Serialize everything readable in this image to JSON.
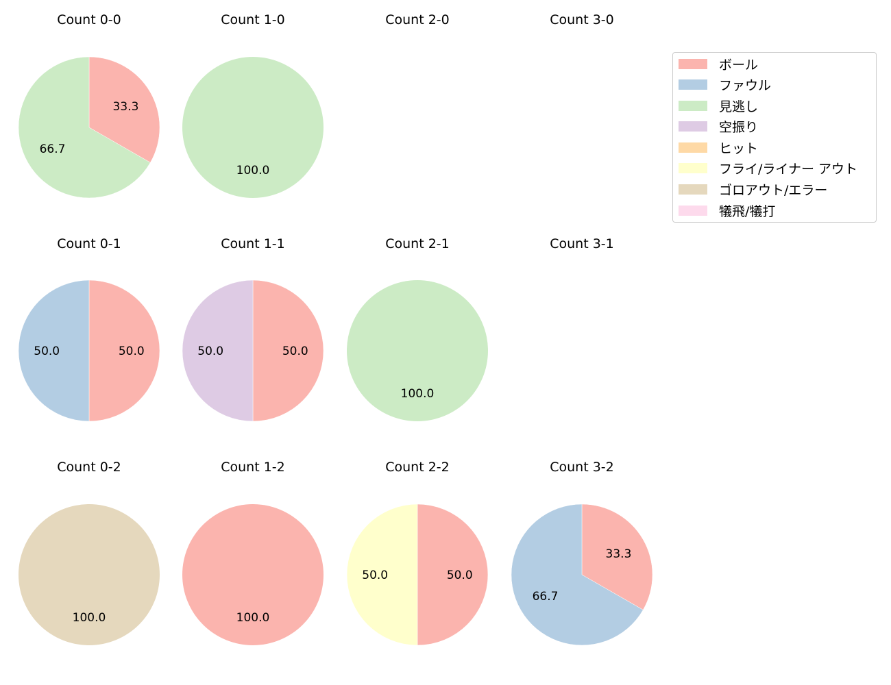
{
  "chart_data": {
    "type": "pie",
    "title": "",
    "legend": {
      "position": "upper right",
      "entries": [
        {
          "label": "ボール",
          "color": "#fbb4ae"
        },
        {
          "label": "ファウル",
          "color": "#b3cde3"
        },
        {
          "label": "見逃し",
          "color": "#ccebc5"
        },
        {
          "label": "空振り",
          "color": "#decbe4"
        },
        {
          "label": "ヒット",
          "color": "#fed9a6"
        },
        {
          "label": "フライ/ライナー アウト",
          "color": "#ffffcc"
        },
        {
          "label": "ゴロアウト/エラー",
          "color": "#e5d8bd"
        },
        {
          "label": "犠飛/犠打",
          "color": "#fddaec"
        }
      ]
    },
    "panels": [
      {
        "title": "Count 0-0",
        "row": 0,
        "col": 0,
        "slices": [
          {
            "category": "ボール",
            "value": 33.3
          },
          {
            "category": "見逃し",
            "value": 66.7
          }
        ]
      },
      {
        "title": "Count 1-0",
        "row": 0,
        "col": 1,
        "slices": [
          {
            "category": "見逃し",
            "value": 100.0
          }
        ]
      },
      {
        "title": "Count 2-0",
        "row": 0,
        "col": 2,
        "slices": []
      },
      {
        "title": "Count 3-0",
        "row": 0,
        "col": 3,
        "slices": []
      },
      {
        "title": "Count 0-1",
        "row": 1,
        "col": 0,
        "slices": [
          {
            "category": "ボール",
            "value": 50.0
          },
          {
            "category": "ファウル",
            "value": 50.0
          }
        ]
      },
      {
        "title": "Count 1-1",
        "row": 1,
        "col": 1,
        "slices": [
          {
            "category": "ボール",
            "value": 50.0
          },
          {
            "category": "空振り",
            "value": 50.0
          }
        ]
      },
      {
        "title": "Count 2-1",
        "row": 1,
        "col": 2,
        "slices": [
          {
            "category": "見逃し",
            "value": 100.0
          }
        ]
      },
      {
        "title": "Count 3-1",
        "row": 1,
        "col": 3,
        "slices": []
      },
      {
        "title": "Count 0-2",
        "row": 2,
        "col": 0,
        "slices": [
          {
            "category": "ゴロアウト/エラー",
            "value": 100.0
          }
        ]
      },
      {
        "title": "Count 1-2",
        "row": 2,
        "col": 1,
        "slices": [
          {
            "category": "ボール",
            "value": 100.0
          }
        ]
      },
      {
        "title": "Count 2-2",
        "row": 2,
        "col": 2,
        "slices": [
          {
            "category": "ボール",
            "value": 50.0
          },
          {
            "category": "フライ/ライナー アウト",
            "value": 50.0
          }
        ]
      },
      {
        "title": "Count 3-2",
        "row": 2,
        "col": 3,
        "slices": [
          {
            "category": "ボール",
            "value": 33.3
          },
          {
            "category": "ファウル",
            "value": 66.7
          }
        ]
      }
    ]
  }
}
